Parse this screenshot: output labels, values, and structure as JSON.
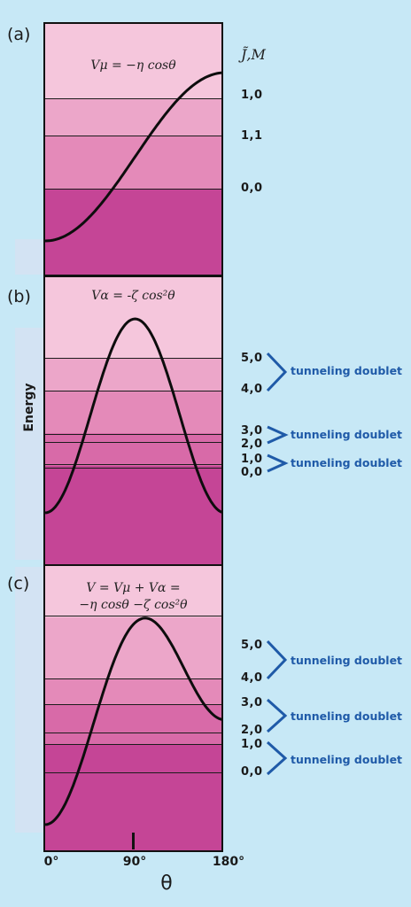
{
  "axis": {
    "ylabel": "Energy",
    "xlabel": "θ",
    "xticks": [
      "0°",
      "90°",
      "180°"
    ]
  },
  "label_header": "J̃,M",
  "colors": {
    "band1": "#f5c6dc",
    "band2": "#eca6c9",
    "band3": "#e48ab9",
    "band4": "#d86aa8",
    "band5": "#c54596",
    "curve": "#0d0d0d",
    "doublet": "#1f5aa8"
  },
  "panels": [
    {
      "letter": "(a)",
      "formula_lines": [
        "Vμ  = −η cosθ"
      ],
      "levels": [
        {
          "label": "1,0"
        },
        {
          "label": "1,1"
        },
        {
          "label": "0,0"
        }
      ],
      "doublets": []
    },
    {
      "letter": "(b)",
      "formula_lines": [
        "Vα = -ζ cos²θ"
      ],
      "levels": [
        {
          "label": "5,0"
        },
        {
          "label": "4,0"
        },
        {
          "label": "3,0"
        },
        {
          "label": "2,0"
        },
        {
          "label": "1,0"
        },
        {
          "label": "0,0"
        }
      ],
      "doublets": [
        "tunneling doublet",
        "tunneling doublet",
        "tunneling doublet"
      ]
    },
    {
      "letter": "(c)",
      "formula_lines": [
        "V = Vμ  + Vα =",
        "−η cosθ −ζ cos²θ"
      ],
      "levels": [
        {
          "label": "5,0"
        },
        {
          "label": "4,0"
        },
        {
          "label": "3,0"
        },
        {
          "label": "2,0"
        },
        {
          "label": "1,0"
        },
        {
          "label": "0,0"
        }
      ],
      "doublets": [
        "tunneling doublet",
        "tunneling doublet",
        "tunneling doublet"
      ]
    }
  ]
}
